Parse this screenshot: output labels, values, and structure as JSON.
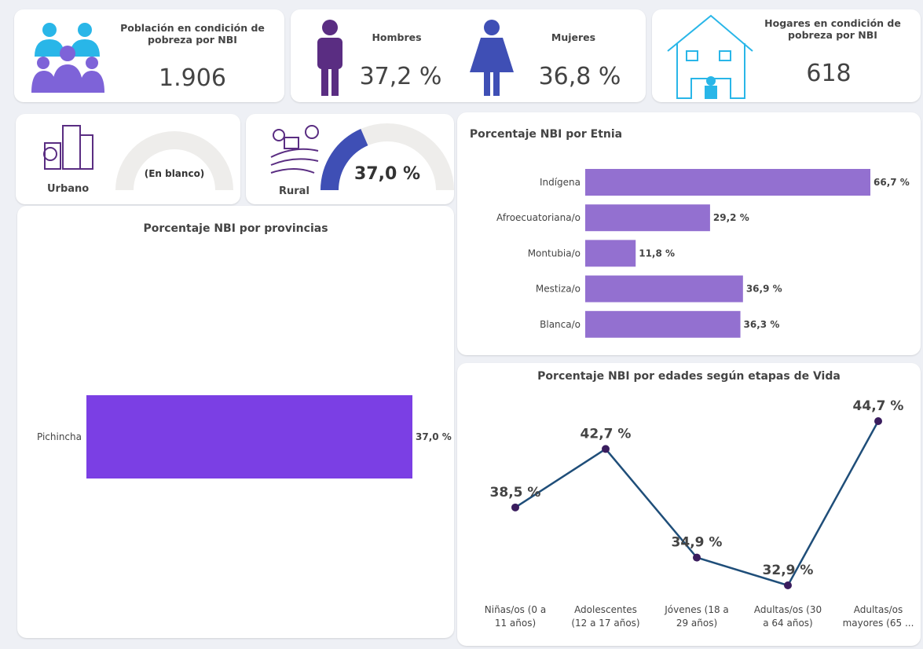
{
  "kpis": {
    "poblacion": {
      "title": "Población en condición de pobreza por NBI",
      "value": "1.906"
    },
    "hombres": {
      "label": "Hombres",
      "value": "37,2 %"
    },
    "mujeres": {
      "label": "Mujeres",
      "value": "36,8 %"
    },
    "hogares": {
      "title": "Hogares en condición de pobreza por NBI",
      "value": "618"
    }
  },
  "chart_data": [
    {
      "type": "gauge",
      "label": "Urbano",
      "value": null,
      "value_label": "(En blanco)",
      "range": [
        0,
        100
      ],
      "color": "#3f4fb5"
    },
    {
      "type": "gauge",
      "label": "Rural",
      "value": 37,
      "value_label": "37,0 %",
      "range": [
        0,
        100
      ],
      "color": "#3f4fb5"
    },
    {
      "type": "hbar",
      "title": "Porcentaje NBI por Etnia",
      "categories": [
        "Indígena",
        "Afroecuatoriana/o",
        "Montubia/o",
        "Mestiza/o",
        "Blanca/o"
      ],
      "values": [
        66.7,
        29.2,
        11.8,
        36.9,
        36.3
      ],
      "value_labels": [
        "66,7 %",
        "29,2 %",
        "11,8 %",
        "36,9 %",
        "36,3 %"
      ],
      "color": "#9370d0"
    },
    {
      "type": "hbar",
      "title": "Porcentaje NBI por provincias",
      "categories": [
        "Pichincha"
      ],
      "values": [
        37
      ],
      "value_labels": [
        "37,0 %"
      ],
      "color": "#7b3fe4"
    },
    {
      "type": "line",
      "title": "Porcentaje NBI por edades según etapas de Vida",
      "categories": [
        "Niñas/os (0 a 11 años)",
        "Adolescentes (12 a 17 años)",
        "Jóvenes (18 a 29 años)",
        "Adultas/os (30 a 64 años)",
        "Adultas/os mayores (65 ..."
      ],
      "values": [
        38.5,
        42.7,
        34.9,
        32.9,
        44.7
      ],
      "value_labels": [
        "38,5 %",
        "42,7 %",
        "34,9 %",
        "32,9 %",
        "44,7 %"
      ],
      "color": "#1f4e79",
      "marker_color": "#3a1d5e"
    }
  ]
}
